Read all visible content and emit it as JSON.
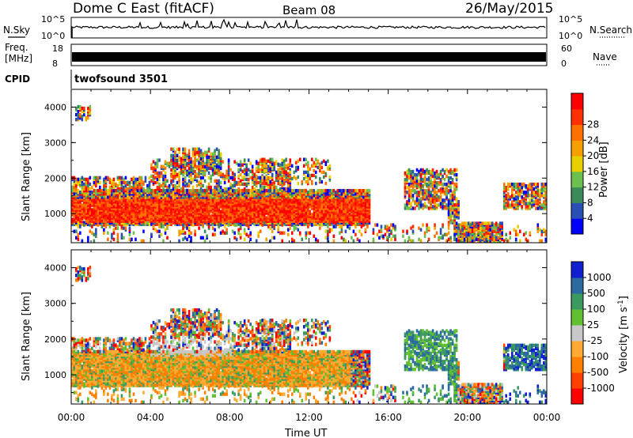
{
  "header": {
    "title": "Dome C East (fitACF)",
    "beam": "Beam 08",
    "date": "26/May/2015"
  },
  "top_panels": {
    "nsky_label": "N.Sky",
    "nsearch_label": "N.Search",
    "nsky_ticks": [
      "10^5",
      "10^0"
    ],
    "nsearch_ticks": [
      "10^5",
      "10^0"
    ],
    "freq_label_line1": "Freq.",
    "freq_label_line2": "[MHz]",
    "freq_ticks": [
      "18",
      "8"
    ],
    "nave_label": "Nave",
    "nave_ticks": [
      "60",
      "0"
    ],
    "cpid_label": "CPID",
    "cpid_value": "twofsound 3501"
  },
  "colors": {
    "power_scale": [
      "#0000ff",
      "#2a4fb4",
      "#3b8a5a",
      "#6cc050",
      "#e8d000",
      "#f5a000",
      "#ff7000",
      "#ff3000",
      "#ff0000"
    ],
    "velocity_scale": [
      "#ff0000",
      "#ff4000",
      "#ff8000",
      "#ffaa33",
      "#c8c8c8",
      "#60c030",
      "#3a9a60",
      "#2a6aa0",
      "#1020d0"
    ]
  },
  "chart_data": [
    {
      "type": "heatmap",
      "title": "Power",
      "xlabel": "Time UT",
      "ylabel": "Slant Range [km]",
      "x_ticks": [
        "00:00",
        "04:00",
        "08:00",
        "12:00",
        "16:00",
        "20:00",
        "00:00"
      ],
      "y_ticks": [
        "1000",
        "2000",
        "3000",
        "4000"
      ],
      "xlim_hours": [
        0,
        24
      ],
      "ylim_km": [
        180,
        4500
      ],
      "colorbar_label": "Power [dB]",
      "colorbar_ticks": [
        "4",
        "8",
        "12",
        "16",
        "20",
        "24",
        "28"
      ],
      "clim": [
        0,
        30
      ]
    },
    {
      "type": "heatmap",
      "title": "Velocity",
      "xlabel": "Time UT",
      "ylabel": "Slant Range [km]",
      "x_ticks": [
        "00:00",
        "04:00",
        "08:00",
        "12:00",
        "16:00",
        "20:00",
        "00:00"
      ],
      "y_ticks": [
        "1000",
        "2000",
        "3000",
        "4000"
      ],
      "xlim_hours": [
        0,
        24
      ],
      "ylim_km": [
        180,
        4500
      ],
      "colorbar_label": "Velocity [m s",
      "colorbar_label_sup": "-1",
      "colorbar_label_end": "]",
      "colorbar_ticks": [
        "1000",
        "500",
        "100",
        "25",
        "-25",
        "-100",
        "-500",
        "-1000"
      ]
    }
  ],
  "x_axis_label": "Time UT"
}
